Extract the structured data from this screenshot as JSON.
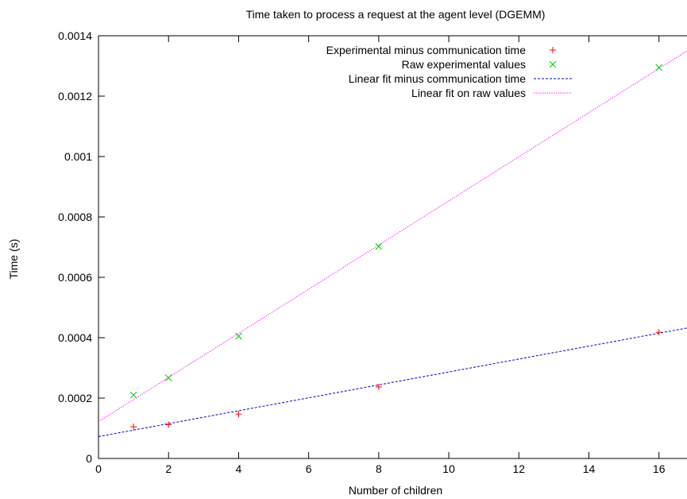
{
  "chart_data": {
    "type": "scatter",
    "title": "Time taken to process a request at the agent level (DGEMM)",
    "xlabel": "Number of children",
    "ylabel": "Time (s)",
    "xlim": [
      0,
      16.8
    ],
    "ylim": [
      0,
      0.0014
    ],
    "x_ticks": [
      0,
      2,
      4,
      6,
      8,
      10,
      12,
      14,
      16
    ],
    "x_tick_labels": [
      "0",
      "2",
      "4",
      "6",
      "8",
      "10",
      "12",
      "14",
      "16"
    ],
    "y_ticks": [
      0,
      0.0002,
      0.0004,
      0.0006,
      0.0008,
      0.001,
      0.0012,
      0.0014
    ],
    "y_tick_labels": [
      "0",
      "0.0002",
      "0.0004",
      "0.0006",
      "0.0008",
      "0.001",
      "0.0012",
      "0.0014"
    ],
    "grid": false,
    "legend_position": "top-right",
    "series": [
      {
        "name": "Experimental minus communication time",
        "kind": "points",
        "marker": "plus",
        "color": "#ff0000",
        "x": [
          1,
          2,
          4,
          8,
          16
        ],
        "y": [
          0.000105,
          0.000112,
          0.000147,
          0.000237,
          0.000418
        ]
      },
      {
        "name": "Raw experimental values",
        "kind": "points",
        "marker": "cross",
        "color": "#00cc00",
        "x": [
          1,
          2,
          4,
          8,
          16
        ],
        "y": [
          0.00021,
          0.000267,
          0.000405,
          0.000702,
          0.001295
        ]
      },
      {
        "name": "Linear fit minus communication time",
        "kind": "line",
        "dash": "dashed",
        "color": "#0000cc",
        "x": [
          0,
          16.8
        ],
        "y": [
          7.25e-05,
          0.000432
        ]
      },
      {
        "name": "Linear fit on raw values",
        "kind": "line",
        "dash": "dotted",
        "color": "#ff00ff",
        "x": [
          0,
          16.8
        ],
        "y": [
          0.000122,
          0.00135
        ]
      }
    ]
  }
}
